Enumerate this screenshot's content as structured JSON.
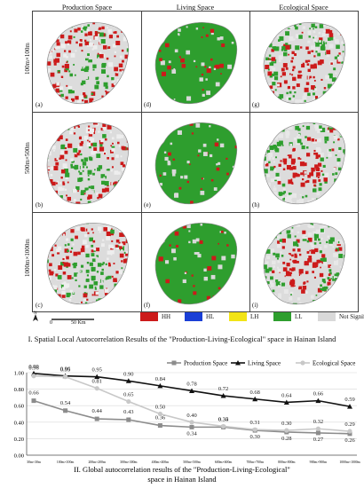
{
  "figure_part1": {
    "column_titles": [
      "Production Space",
      "Living Space",
      "Ecological Space"
    ],
    "row_labels": [
      "100m×100m",
      "500m×500m",
      "1000m×1000m"
    ],
    "panel_labels": [
      "(a)",
      "(b)",
      "(c)",
      "(d)",
      "(e)",
      "(f)",
      "(g)",
      "(h)",
      "(i)"
    ],
    "legend": [
      {
        "label": "HH",
        "color": "#cc1a1a"
      },
      {
        "label": "HL",
        "color": "#1a3fd6"
      },
      {
        "label": "LH",
        "color": "#f2e416"
      },
      {
        "label": "LL",
        "color": "#2e9e2e"
      },
      {
        "label": "Not Significant",
        "color": "#d9d9d9"
      }
    ],
    "scale_label": "50 Km",
    "scale_zero": "0",
    "north": "N",
    "caption": "I. Spatial Local Autocorrelation Results of the \"Production-Living-Ecological\" space in Hainan Island"
  },
  "chart_data": {
    "type": "line",
    "ylim": [
      0,
      1.0
    ],
    "yticks": [
      "0.00",
      "0.20",
      "0.40",
      "0.60",
      "0.80",
      "1.00"
    ],
    "categories": [
      "30m×30m",
      "100m×100m",
      "200m×200m",
      "300m×300m",
      "400m×400m",
      "500m×500m",
      "600m×600m",
      "700m×700m",
      "800m×800m",
      "900m×900m",
      "1000m×1000m"
    ],
    "series": [
      {
        "name": "Production Space",
        "color": "#8c8c8c",
        "marker": "square",
        "values": [
          0.66,
          0.54,
          0.44,
          0.43,
          0.36,
          0.34,
          0.34,
          0.3,
          0.28,
          0.27,
          0.26
        ]
      },
      {
        "name": "Living Space",
        "color": "#111111",
        "marker": "triangle",
        "values": [
          0.99,
          0.96,
          0.95,
          0.9,
          0.84,
          0.78,
          0.72,
          0.68,
          0.64,
          0.66,
          0.59
        ]
      },
      {
        "name": "Ecological Space",
        "color": "#c8c8c8",
        "marker": "circle",
        "values": [
          0.96,
          0.95,
          0.81,
          0.65,
          0.5,
          0.4,
          0.35,
          0.31,
          0.3,
          0.32,
          0.29
        ]
      }
    ],
    "caption": "II. Global autocorrelation results of the \"Production-Living-Ecological\" space in Hainan Island"
  }
}
